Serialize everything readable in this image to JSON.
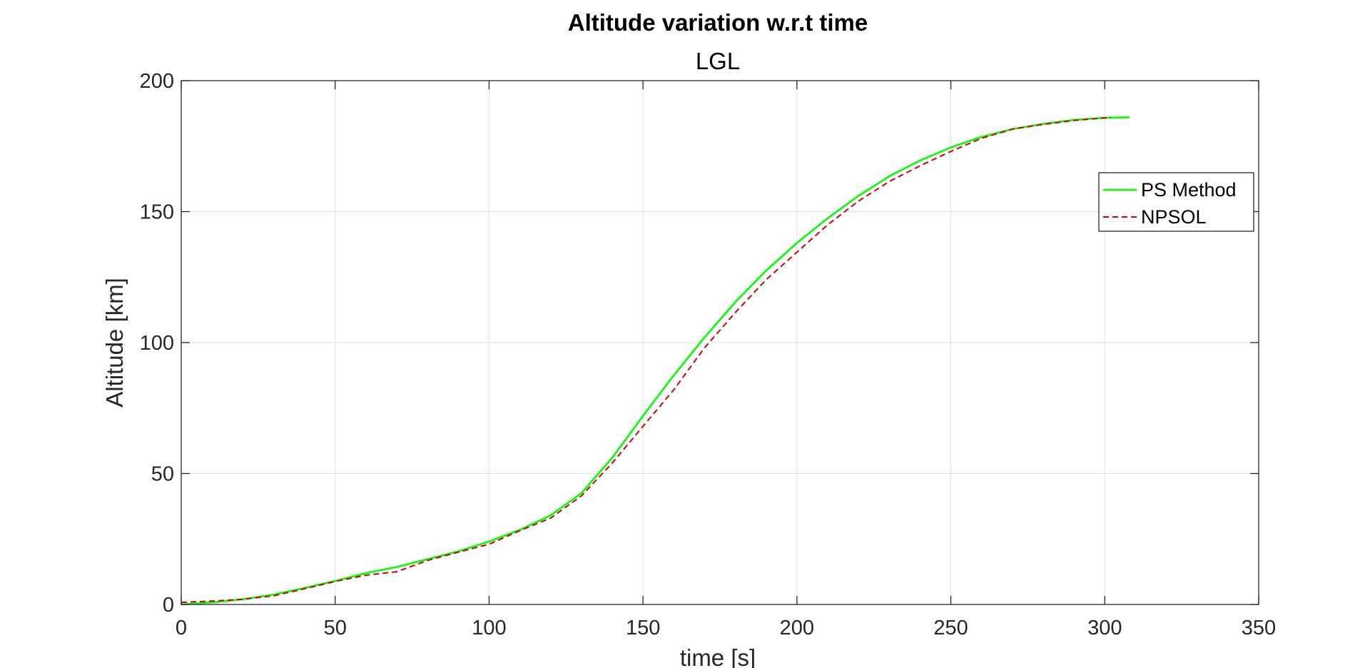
{
  "chart_data": {
    "type": "line",
    "title": "Altitude variation w.r.t time",
    "subtitle": "LGL",
    "xlabel": "time [s]",
    "ylabel": "Altitude [km]",
    "xlim": [
      0,
      350
    ],
    "ylim": [
      0,
      200
    ],
    "xticks": [
      0,
      50,
      100,
      150,
      200,
      250,
      300,
      350
    ],
    "yticks": [
      0,
      50,
      100,
      150,
      200
    ],
    "xtick_labels": [
      "0",
      "50",
      "100",
      "150",
      "200",
      "250",
      "300",
      "350"
    ],
    "ytick_labels": [
      "0",
      "50",
      "100",
      "150",
      "200"
    ],
    "grid": true,
    "legend_position": "top-right",
    "series": [
      {
        "name": "PS Method",
        "color": "#00ff00",
        "line_style": "solid",
        "x": [
          0,
          10,
          20,
          30,
          40,
          50,
          60,
          70,
          80,
          90,
          100,
          110,
          120,
          130,
          140,
          150,
          160,
          170,
          180,
          190,
          200,
          210,
          220,
          230,
          240,
          250,
          260,
          270,
          280,
          290,
          300,
          308
        ],
        "y": [
          0,
          0.8,
          2,
          3.8,
          6.3,
          9,
          12,
          14.3,
          17.3,
          20.3,
          24,
          28.5,
          34,
          42.5,
          56,
          72,
          87.5,
          102,
          115.5,
          127.5,
          138,
          147.5,
          156,
          163.5,
          169.5,
          174.5,
          178.5,
          181.5,
          183.5,
          185,
          185.8,
          186
        ]
      },
      {
        "name": "NPSOL",
        "color": "#d00000",
        "line_style": "dashed",
        "x": [
          0,
          10,
          20,
          30,
          40,
          50,
          60,
          70,
          80,
          90,
          100,
          110,
          120,
          130,
          140,
          150,
          160,
          170,
          180,
          190,
          200,
          210,
          220,
          230,
          240,
          250,
          260,
          270,
          280,
          290,
          302
        ],
        "y": [
          0.8,
          1.3,
          2,
          3.3,
          6,
          8.8,
          11.2,
          12.5,
          16.8,
          20,
          23,
          28.2,
          33,
          41.5,
          54,
          68,
          82,
          98,
          111.5,
          124,
          134.5,
          145,
          154,
          161.5,
          167.5,
          173,
          178,
          181.5,
          183.3,
          184.8,
          186
        ]
      }
    ]
  }
}
